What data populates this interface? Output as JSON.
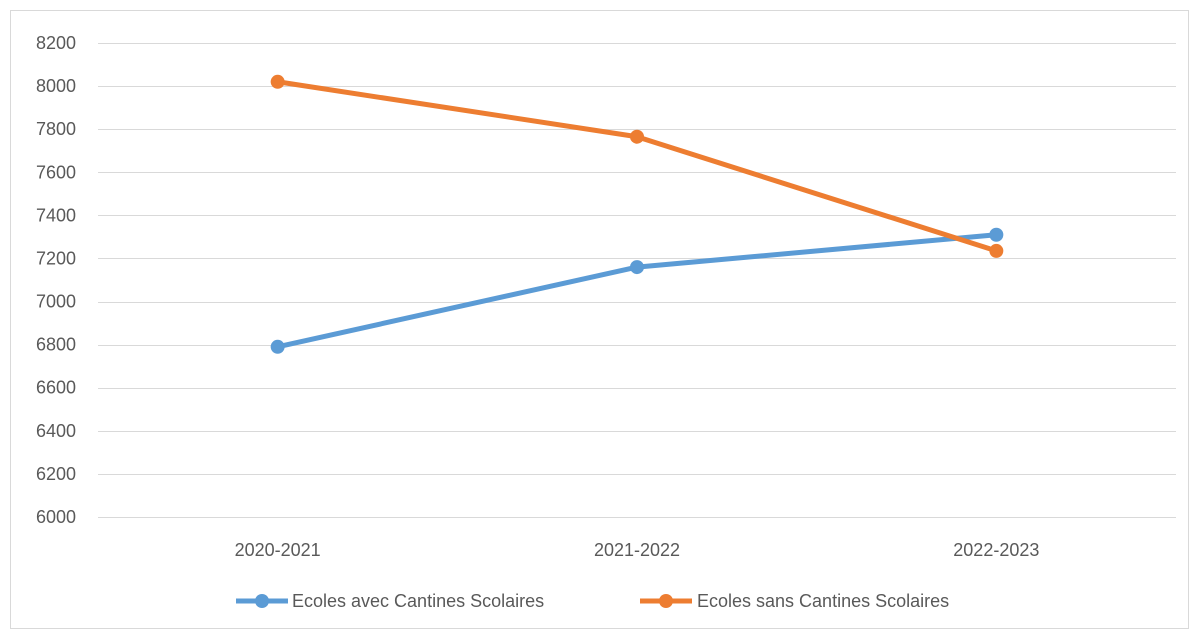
{
  "chart_data": {
    "type": "line",
    "categories": [
      "2020-2021",
      "2021-2022",
      "2022-2023"
    ],
    "series": [
      {
        "name": "Ecoles avec Cantines Scolaires",
        "values": [
          6790,
          7160,
          7310
        ],
        "color": "#5b9bd5"
      },
      {
        "name": "Ecoles sans Cantines Scolaires",
        "values": [
          8020,
          7765,
          7235
        ],
        "color": "#ed7d31"
      }
    ],
    "ylim": [
      6000,
      8200
    ],
    "yticks": [
      6000,
      6200,
      6400,
      6600,
      6800,
      7000,
      7200,
      7400,
      7600,
      7800,
      8000,
      8200
    ],
    "grid": true,
    "legend": "bottom",
    "title": "",
    "xlabel": "",
    "ylabel": ""
  }
}
